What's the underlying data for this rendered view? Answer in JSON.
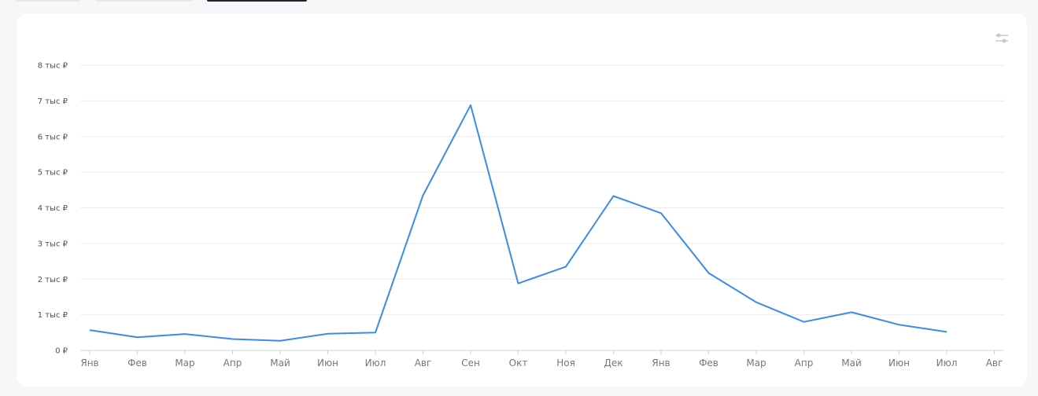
{
  "chart_data": {
    "type": "line",
    "y_unit": "тыс ₽",
    "ylim": [
      0,
      8000
    ],
    "yticks": [
      "0 ₽",
      "1 тыс ₽",
      "2 тыс ₽",
      "3 тыс ₽",
      "4 тыс ₽",
      "5 тыс ₽",
      "6 тыс ₽",
      "7 тыс ₽",
      "8 тыс ₽"
    ],
    "categories": [
      "Янв",
      "Фев",
      "Мар",
      "Апр",
      "Май",
      "Июн",
      "Июл",
      "Авг",
      "Сен",
      "Окт",
      "Ноя",
      "Дек",
      "Янв",
      "Фев",
      "Мар",
      "Апр",
      "Май",
      "Июн",
      "Июл",
      "Авг"
    ],
    "series": [
      {
        "values": [
          570,
          370,
          460,
          320,
          270,
          470,
          500,
          4350,
          6880,
          1880,
          2350,
          4330,
          3850,
          2170,
          1350,
          800,
          1070,
          720,
          520,
          null
        ]
      }
    ],
    "grid": true,
    "line_color": "#3a8bea"
  },
  "controls": {
    "settings_icon": "sliders-icon"
  }
}
